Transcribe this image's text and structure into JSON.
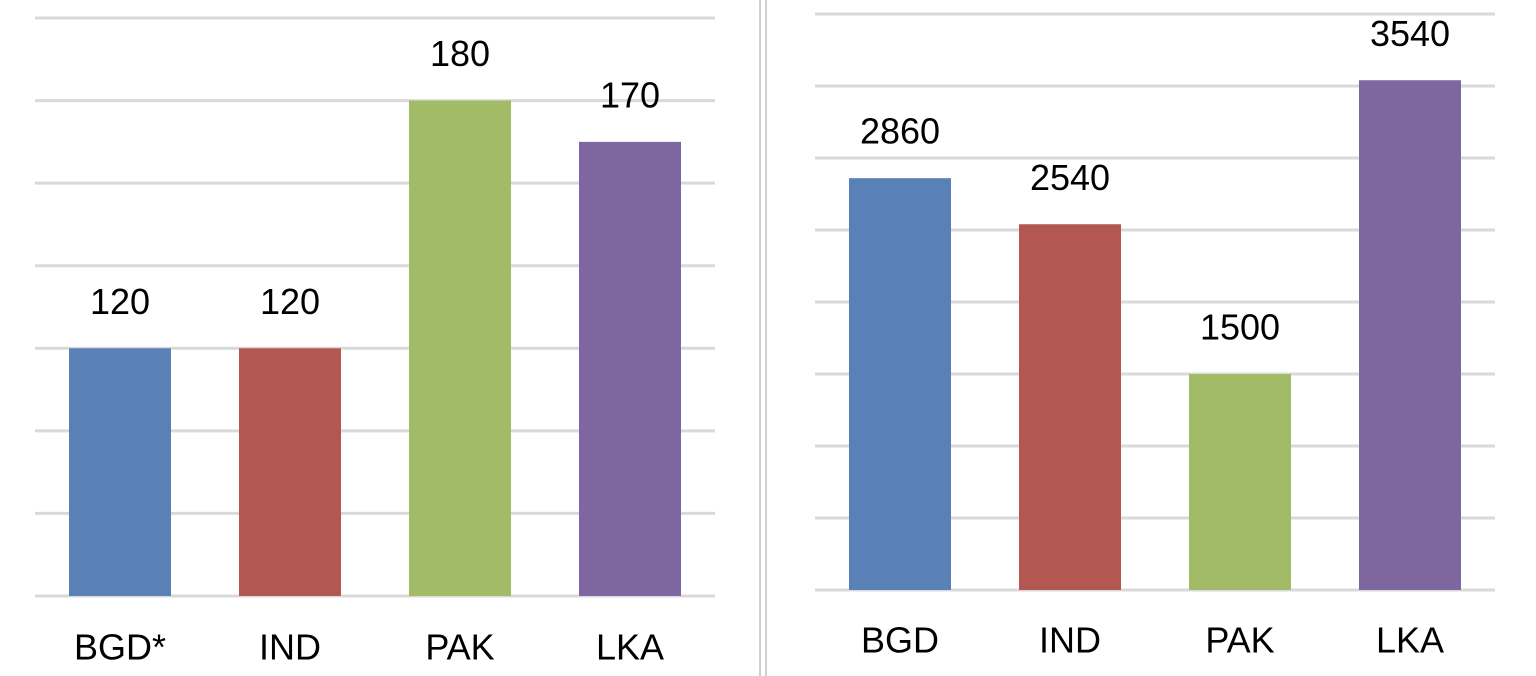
{
  "chart_data": [
    {
      "type": "bar",
      "categories": [
        "BGD*",
        "IND",
        "PAK",
        "LKA"
      ],
      "values": [
        120,
        120,
        180,
        170
      ],
      "colors": [
        "#5a80b8",
        "#b35753",
        "#a2bb66",
        "#7e66a0"
      ],
      "ylim": [
        60,
        200
      ],
      "yticks": [
        60,
        80,
        100,
        120,
        140,
        160,
        180,
        200
      ],
      "grid": true
    },
    {
      "type": "bar",
      "categories": [
        "BGD",
        "IND",
        "PAK",
        "LKA"
      ],
      "values": [
        2860,
        2540,
        1500,
        3540
      ],
      "colors": [
        "#5a80b8",
        "#b35753",
        "#a2bb66",
        "#7e66a0"
      ],
      "ylim": [
        0,
        4000
      ],
      "yticks": [
        0,
        500,
        1000,
        1500,
        2000,
        2500,
        3000,
        3500,
        4000
      ],
      "grid": true
    }
  ]
}
